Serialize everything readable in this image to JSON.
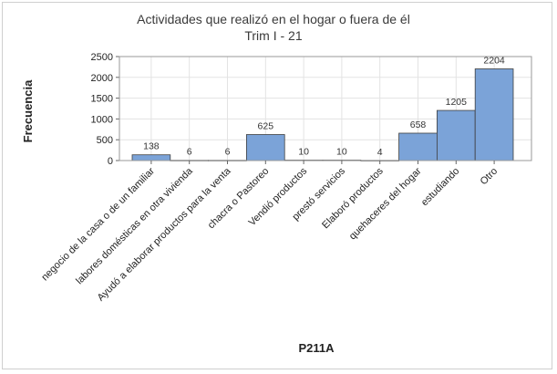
{
  "chart_data": {
    "type": "bar",
    "title": "Actividades que realizó en el hogar o fuera de él",
    "subtitle": "Trim I - 21",
    "xlabel": "P211A",
    "ylabel": "Frecuencia",
    "categories": [
      "negocio de la casa o de un familiar",
      "labores domésticas en otra vivienda",
      "Ayudó a elaborar productos para la venta",
      "chacra o Pastoreo",
      "Vendió productos",
      "prestó servicios",
      "Elaboró productos",
      "quehaceres del hogar",
      "estudiando",
      "Otro"
    ],
    "values": [
      138,
      6,
      6,
      625,
      10,
      10,
      4,
      658,
      1205,
      2204
    ],
    "yticks": [
      0,
      500,
      1000,
      1500,
      2000,
      2500
    ],
    "ylim": [
      0,
      2500
    ],
    "grid": true,
    "bar_color": "#7ba3d8",
    "legend": "none"
  }
}
